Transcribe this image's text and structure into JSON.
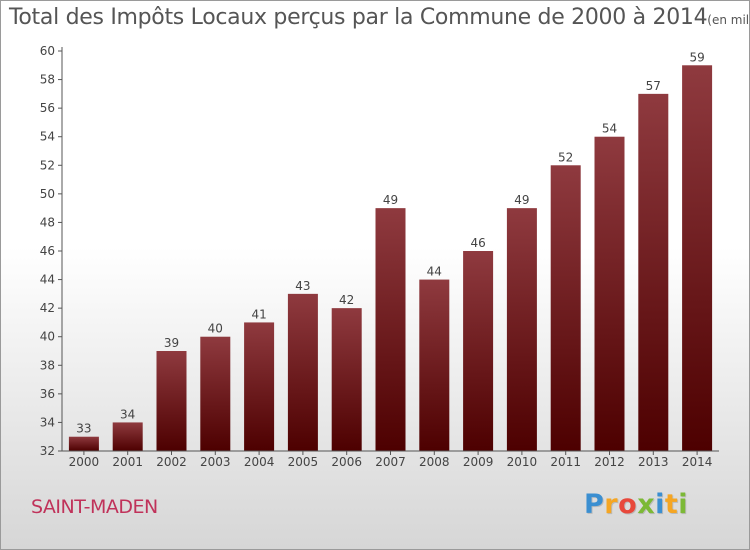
{
  "header": {
    "title": "Total des Impôts Locaux perçus par la Commune de 2000 à 2014",
    "unit": "(en milliers d'€)"
  },
  "commune": "SAINT-MADEN",
  "brand": {
    "letters": [
      "P",
      "r",
      "o",
      "x",
      "i",
      "t",
      "i"
    ],
    "colors": [
      "#3b8fd1",
      "#f5a623",
      "#e8483b",
      "#7cb936",
      "#3b8fd1",
      "#f5a623",
      "#7cb936"
    ]
  },
  "colors": {
    "bar_top": "#8f3a3f",
    "bar_bottom": "#4d0000",
    "axis_text": "#444444"
  },
  "chart_data": {
    "type": "bar",
    "categories": [
      "2000",
      "2001",
      "2002",
      "2003",
      "2004",
      "2005",
      "2006",
      "2007",
      "2008",
      "2009",
      "2010",
      "2011",
      "2012",
      "2013",
      "2014"
    ],
    "values": [
      33,
      34,
      39,
      40,
      41,
      43,
      42,
      49,
      44,
      46,
      49,
      52,
      54,
      57,
      59
    ],
    "title": "Total des Impôts Locaux perçus par la Commune de 2000 à 2014",
    "xlabel": "",
    "ylabel": "",
    "ylim": [
      32,
      60
    ],
    "yticks": [
      32,
      34,
      36,
      38,
      40,
      42,
      44,
      46,
      48,
      50,
      52,
      54,
      56,
      58,
      60
    ],
    "grid": false,
    "data_labels": true
  }
}
